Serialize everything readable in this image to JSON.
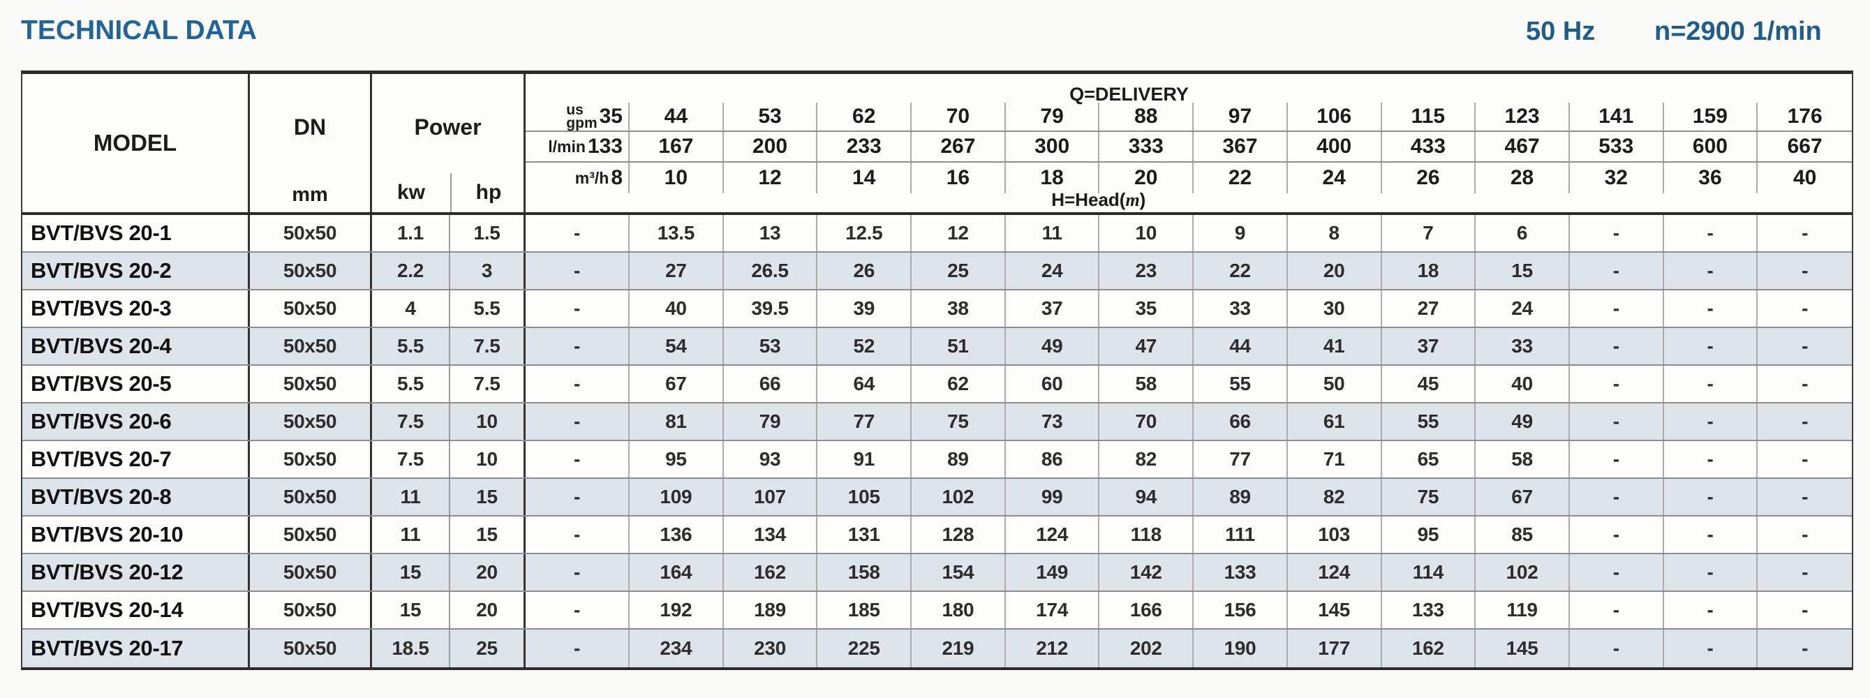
{
  "page": {
    "title": "TECHNICAL DATA",
    "frequency": "50 Hz",
    "speed": "n=2900 1/min"
  },
  "colors": {
    "accent_blue": "#1f649c",
    "header_info_blue": "#1d5d8e",
    "row_shade": "#dde4ea"
  },
  "table": {
    "model_header": "MODEL",
    "dn_header": "DN",
    "dn_unit": "mm",
    "power_header": "Power",
    "power_unit_kw": "kw",
    "power_unit_hp": "hp",
    "delivery_title": "Q=DELIVERY",
    "head_prefix": "H=Head(",
    "head_m": "m",
    "head_suffix": ")",
    "flow_rows": [
      {
        "unit_top": "us",
        "unit": "gpm",
        "first": "35",
        "values": [
          "44",
          "53",
          "62",
          "70",
          "79",
          "88",
          "97",
          "106",
          "115",
          "123",
          "141",
          "159",
          "176"
        ]
      },
      {
        "unit": "l/min",
        "first": "133",
        "values": [
          "167",
          "200",
          "233",
          "267",
          "300",
          "333",
          "367",
          "400",
          "433",
          "467",
          "533",
          "600",
          "667"
        ]
      },
      {
        "unit": "m³/h",
        "first": "8",
        "values": [
          "10",
          "12",
          "14",
          "16",
          "18",
          "20",
          "22",
          "24",
          "26",
          "28",
          "32",
          "36",
          "40"
        ]
      }
    ],
    "rows": [
      {
        "model": "BVT/BVS 20-1",
        "dn": "50x50",
        "kw": "1.1",
        "hp": "1.5",
        "values": [
          "-",
          "13.5",
          "13",
          "12.5",
          "12",
          "11",
          "10",
          "9",
          "8",
          "7",
          "6",
          "-",
          "-",
          "-"
        ]
      },
      {
        "model": "BVT/BVS 20-2",
        "dn": "50x50",
        "kw": "2.2",
        "hp": "3",
        "values": [
          "-",
          "27",
          "26.5",
          "26",
          "25",
          "24",
          "23",
          "22",
          "20",
          "18",
          "15",
          "-",
          "-",
          "-"
        ]
      },
      {
        "model": "BVT/BVS 20-3",
        "dn": "50x50",
        "kw": "4",
        "hp": "5.5",
        "values": [
          "-",
          "40",
          "39.5",
          "39",
          "38",
          "37",
          "35",
          "33",
          "30",
          "27",
          "24",
          "-",
          "-",
          "-"
        ]
      },
      {
        "model": "BVT/BVS 20-4",
        "dn": "50x50",
        "kw": "5.5",
        "hp": "7.5",
        "values": [
          "-",
          "54",
          "53",
          "52",
          "51",
          "49",
          "47",
          "44",
          "41",
          "37",
          "33",
          "-",
          "-",
          "-"
        ]
      },
      {
        "model": "BVT/BVS 20-5",
        "dn": "50x50",
        "kw": "5.5",
        "hp": "7.5",
        "values": [
          "-",
          "67",
          "66",
          "64",
          "62",
          "60",
          "58",
          "55",
          "50",
          "45",
          "40",
          "-",
          "-",
          "-"
        ]
      },
      {
        "model": "BVT/BVS 20-6",
        "dn": "50x50",
        "kw": "7.5",
        "hp": "10",
        "values": [
          "-",
          "81",
          "79",
          "77",
          "75",
          "73",
          "70",
          "66",
          "61",
          "55",
          "49",
          "-",
          "-",
          "-"
        ]
      },
      {
        "model": "BVT/BVS 20-7",
        "dn": "50x50",
        "kw": "7.5",
        "hp": "10",
        "values": [
          "-",
          "95",
          "93",
          "91",
          "89",
          "86",
          "82",
          "77",
          "71",
          "65",
          "58",
          "-",
          "-",
          "-"
        ]
      },
      {
        "model": "BVT/BVS 20-8",
        "dn": "50x50",
        "kw": "11",
        "hp": "15",
        "values": [
          "-",
          "109",
          "107",
          "105",
          "102",
          "99",
          "94",
          "89",
          "82",
          "75",
          "67",
          "-",
          "-",
          "-"
        ]
      },
      {
        "model": "BVT/BVS 20-10",
        "dn": "50x50",
        "kw": "11",
        "hp": "15",
        "values": [
          "-",
          "136",
          "134",
          "131",
          "128",
          "124",
          "118",
          "111",
          "103",
          "95",
          "85",
          "-",
          "-",
          "-"
        ]
      },
      {
        "model": "BVT/BVS 20-12",
        "dn": "50x50",
        "kw": "15",
        "hp": "20",
        "values": [
          "-",
          "164",
          "162",
          "158",
          "154",
          "149",
          "142",
          "133",
          "124",
          "114",
          "102",
          "-",
          "-",
          "-"
        ]
      },
      {
        "model": "BVT/BVS 20-14",
        "dn": "50x50",
        "kw": "15",
        "hp": "20",
        "values": [
          "-",
          "192",
          "189",
          "185",
          "180",
          "174",
          "166",
          "156",
          "145",
          "133",
          "119",
          "-",
          "-",
          "-"
        ]
      },
      {
        "model": "BVT/BVS 20-17",
        "dn": "50x50",
        "kw": "18.5",
        "hp": "25",
        "values": [
          "-",
          "234",
          "230",
          "225",
          "219",
          "212",
          "202",
          "190",
          "177",
          "162",
          "145",
          "-",
          "-",
          "-"
        ]
      }
    ]
  }
}
